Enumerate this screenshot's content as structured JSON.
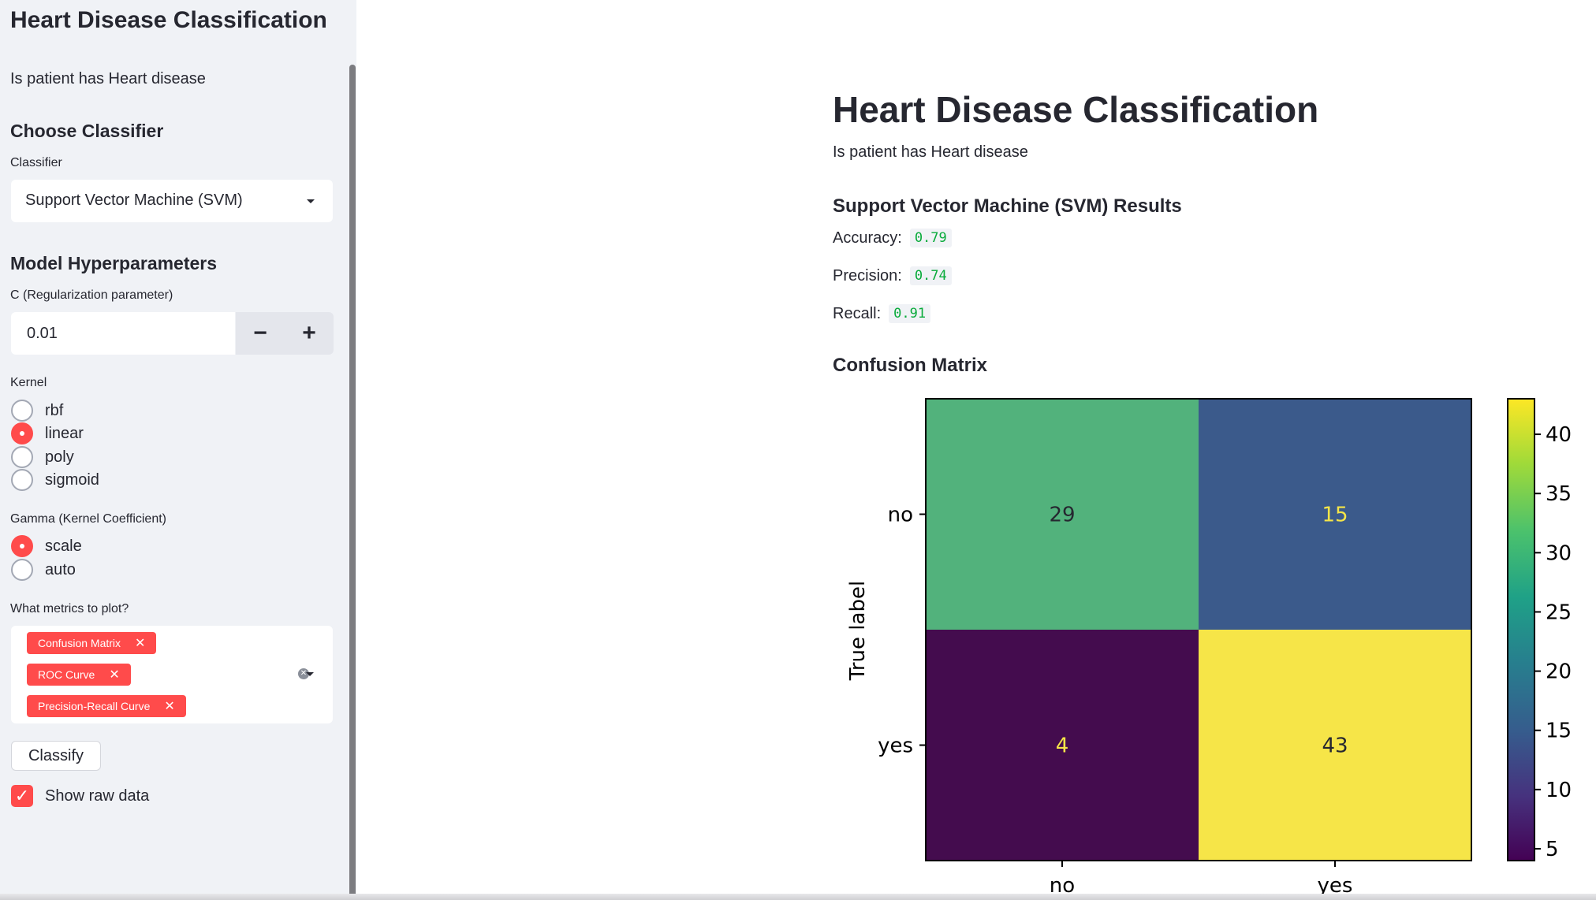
{
  "sidebar": {
    "title": "Heart Disease Classification",
    "subtitle": "Is patient has Heart disease",
    "choose_heading": "Choose Classifier",
    "classifier_label": "Classifier",
    "classifier_value": "Support Vector Machine (SVM)",
    "hyper_heading": "Model Hyperparameters",
    "c_label": "C (Regularization parameter)",
    "c_value": "0.01",
    "minus_label": "−",
    "plus_label": "+",
    "kernel_label": "Kernel",
    "kernel_options": [
      "rbf",
      "linear",
      "poly",
      "sigmoid"
    ],
    "kernel_selected": "linear",
    "gamma_label": "Gamma (Kernel Coefficient)",
    "gamma_options": [
      "scale",
      "auto"
    ],
    "gamma_selected": "scale",
    "metrics_label": "What metrics to plot?",
    "metrics_selected": [
      "Confusion Matrix",
      "ROC Curve",
      "Precision-Recall Curve"
    ],
    "classify_label": "Classify",
    "show_raw_label": "Show raw data",
    "show_raw_checked": true,
    "accent_color": "#ff4b4b"
  },
  "main": {
    "title": "Heart Disease Classification",
    "subtitle": "Is patient has Heart disease",
    "results_heading": "Support Vector Machine (SVM) Results",
    "accuracy_label": "Accuracy:",
    "accuracy_value": "0.79",
    "precision_label": "Precision:",
    "precision_value": "0.74",
    "recall_label": "Recall:",
    "recall_value": "0.91",
    "cm_heading": "Confusion Matrix"
  },
  "chart_data": {
    "type": "heatmap",
    "title": "",
    "ylabel": "True label",
    "xlabel": "",
    "x_categories": [
      "no",
      "yes"
    ],
    "y_categories": [
      "no",
      "yes"
    ],
    "values": [
      [
        29,
        15
      ],
      [
        4,
        43
      ]
    ],
    "colormap": "viridis",
    "colorbar_range": [
      4,
      43
    ],
    "colorbar_ticks": [
      5,
      10,
      15,
      20,
      25,
      30,
      35,
      40
    ],
    "cell_colors": [
      [
        "#52b27c",
        "#3b5a8b"
      ],
      [
        "#440c4e",
        "#f6e548"
      ]
    ],
    "text_colors": [
      [
        "#262730",
        "#f6e548"
      ],
      [
        "#f6e548",
        "#262730"
      ]
    ]
  }
}
